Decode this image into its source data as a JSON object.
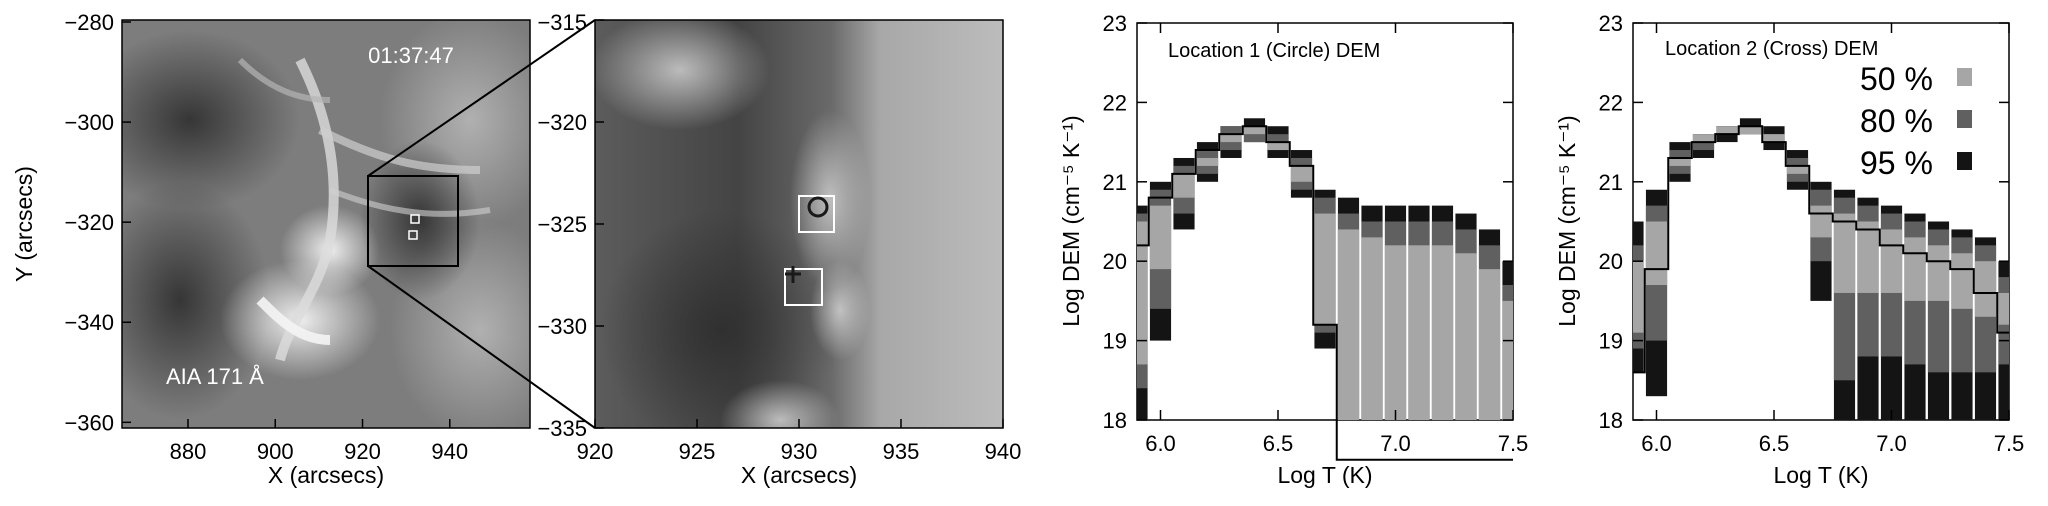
{
  "image_panel_1": {
    "timestamp": "01:37:47",
    "instrument_label": "AIA 171 Å",
    "xlabel": "X (arcsecs)",
    "ylabel": "Y (arcsecs)",
    "x_ticks": [
      "880",
      "900",
      "920",
      "940"
    ],
    "y_ticks": [
      "−280",
      "−300",
      "−320",
      "−340",
      "−360"
    ]
  },
  "image_panel_2": {
    "xlabel": "X (arcsecs)",
    "x_ticks": [
      "920",
      "925",
      "930",
      "935",
      "940"
    ],
    "y_ticks": [
      "−315",
      "−320",
      "−325",
      "−330",
      "−335"
    ]
  },
  "chart_data": [
    {
      "type": "bar",
      "title": "Location 1 (Circle) DEM",
      "xlabel": "Log T (K)",
      "ylabel": "Log DEM (cm⁻⁵ K⁻¹)",
      "xlim": [
        5.9,
        7.5
      ],
      "ylim": [
        18,
        23
      ],
      "x_ticks": [
        "6.0",
        "6.5",
        "7.0",
        "7.5"
      ],
      "y_ticks": [
        "18",
        "19",
        "20",
        "21",
        "22",
        "23"
      ],
      "temps": [
        5.9,
        6.0,
        6.1,
        6.2,
        6.3,
        6.4,
        6.5,
        6.6,
        6.7,
        6.8,
        6.9,
        7.0,
        7.1,
        7.2,
        7.3,
        7.4,
        7.5
      ],
      "ranges_95": [
        [
          18.0,
          20.7
        ],
        [
          19.0,
          21.0
        ],
        [
          20.4,
          21.3
        ],
        [
          21.0,
          21.5
        ],
        [
          21.3,
          21.7
        ],
        [
          21.5,
          21.8
        ],
        [
          21.3,
          21.7
        ],
        [
          20.8,
          21.4
        ],
        [
          18.9,
          20.9
        ],
        [
          18.0,
          20.8
        ],
        [
          18.0,
          20.7
        ],
        [
          18.0,
          20.7
        ],
        [
          18.0,
          20.7
        ],
        [
          18.0,
          20.7
        ],
        [
          18.0,
          20.6
        ],
        [
          18.0,
          20.4
        ],
        [
          18.0,
          20.0
        ]
      ],
      "ranges_80": [
        [
          18.4,
          20.6
        ],
        [
          19.4,
          20.9
        ],
        [
          20.6,
          21.2
        ],
        [
          21.1,
          21.4
        ],
        [
          21.4,
          21.7
        ],
        [
          21.5,
          21.7
        ],
        [
          21.4,
          21.6
        ],
        [
          20.9,
          21.3
        ],
        [
          19.1,
          20.8
        ],
        [
          18.0,
          20.6
        ],
        [
          18.0,
          20.5
        ],
        [
          18.0,
          20.5
        ],
        [
          18.0,
          20.5
        ],
        [
          18.0,
          20.5
        ],
        [
          18.0,
          20.4
        ],
        [
          18.0,
          20.2
        ],
        [
          18.0,
          19.7
        ]
      ],
      "ranges_50": [
        [
          18.7,
          20.5
        ],
        [
          19.9,
          20.7
        ],
        [
          20.8,
          21.1
        ],
        [
          21.2,
          21.3
        ],
        [
          21.5,
          21.6
        ],
        [
          21.6,
          21.7
        ],
        [
          21.4,
          21.5
        ],
        [
          21.0,
          21.2
        ],
        [
          19.2,
          20.6
        ],
        [
          18.0,
          20.4
        ],
        [
          18.0,
          20.3
        ],
        [
          18.0,
          20.2
        ],
        [
          18.0,
          20.2
        ],
        [
          18.0,
          20.2
        ],
        [
          18.0,
          20.1
        ],
        [
          18.0,
          19.9
        ],
        [
          18.0,
          19.5
        ]
      ],
      "best_fit": [
        20.2,
        20.8,
        21.1,
        21.4,
        21.6,
        21.7,
        21.5,
        21.2,
        19.2,
        17.5,
        17.5,
        17.5,
        17.5,
        17.5,
        17.5,
        17.5,
        17.5
      ]
    },
    {
      "type": "bar",
      "title": "Location 2 (Cross) DEM",
      "xlabel": "Log T (K)",
      "ylabel": "Log DEM (cm⁻⁵ K⁻¹)",
      "xlim": [
        5.9,
        7.5
      ],
      "ylim": [
        18,
        23
      ],
      "x_ticks": [
        "6.0",
        "6.5",
        "7.0",
        "7.5"
      ],
      "y_ticks": [
        "18",
        "19",
        "20",
        "21",
        "22",
        "23"
      ],
      "legend": [
        {
          "label": "50 %",
          "color": "#a6a6a6"
        },
        {
          "label": "80 %",
          "color": "#606060"
        },
        {
          "label": "95 %",
          "color": "#141414"
        }
      ],
      "temps": [
        5.9,
        6.0,
        6.1,
        6.2,
        6.3,
        6.4,
        6.5,
        6.6,
        6.7,
        6.8,
        6.9,
        7.0,
        7.1,
        7.2,
        7.3,
        7.4,
        7.5
      ],
      "ranges_95": [
        [
          18.6,
          20.5
        ],
        [
          18.3,
          20.9
        ],
        [
          21.0,
          21.5
        ],
        [
          21.3,
          21.6
        ],
        [
          21.5,
          21.7
        ],
        [
          21.6,
          21.8
        ],
        [
          21.4,
          21.7
        ],
        [
          20.9,
          21.4
        ],
        [
          19.5,
          21.0
        ],
        [
          18.0,
          20.9
        ],
        [
          18.0,
          20.8
        ],
        [
          18.0,
          20.7
        ],
        [
          18.0,
          20.6
        ],
        [
          18.0,
          20.5
        ],
        [
          18.0,
          20.4
        ],
        [
          18.0,
          20.3
        ],
        [
          18.0,
          20.0
        ]
      ],
      "ranges_80": [
        [
          18.9,
          20.2
        ],
        [
          19.0,
          20.7
        ],
        [
          21.1,
          21.4
        ],
        [
          21.4,
          21.6
        ],
        [
          21.6,
          21.7
        ],
        [
          21.6,
          21.7
        ],
        [
          21.5,
          21.6
        ],
        [
          21.0,
          21.3
        ],
        [
          20.0,
          20.9
        ],
        [
          18.5,
          20.8
        ],
        [
          18.8,
          20.7
        ],
        [
          18.8,
          20.6
        ],
        [
          18.7,
          20.5
        ],
        [
          18.6,
          20.4
        ],
        [
          18.6,
          20.3
        ],
        [
          18.6,
          20.2
        ],
        [
          18.7,
          19.8
        ]
      ],
      "ranges_50": [
        [
          19.1,
          20.0
        ],
        [
          19.7,
          20.5
        ],
        [
          21.2,
          21.3
        ],
        [
          21.5,
          21.6
        ],
        [
          21.6,
          21.7
        ],
        [
          21.6,
          21.7
        ],
        [
          21.5,
          21.6
        ],
        [
          21.1,
          21.2
        ],
        [
          20.3,
          20.7
        ],
        [
          19.6,
          20.6
        ],
        [
          19.6,
          20.5
        ],
        [
          19.6,
          20.4
        ],
        [
          19.5,
          20.3
        ],
        [
          19.5,
          20.2
        ],
        [
          19.4,
          20.1
        ],
        [
          19.3,
          20.0
        ],
        [
          19.2,
          19.6
        ]
      ],
      "best_fit": [
        18.6,
        19.9,
        21.3,
        21.5,
        21.6,
        21.7,
        21.5,
        21.2,
        20.6,
        20.5,
        20.4,
        20.2,
        20.1,
        20.0,
        19.9,
        19.6,
        19.1
      ]
    }
  ]
}
